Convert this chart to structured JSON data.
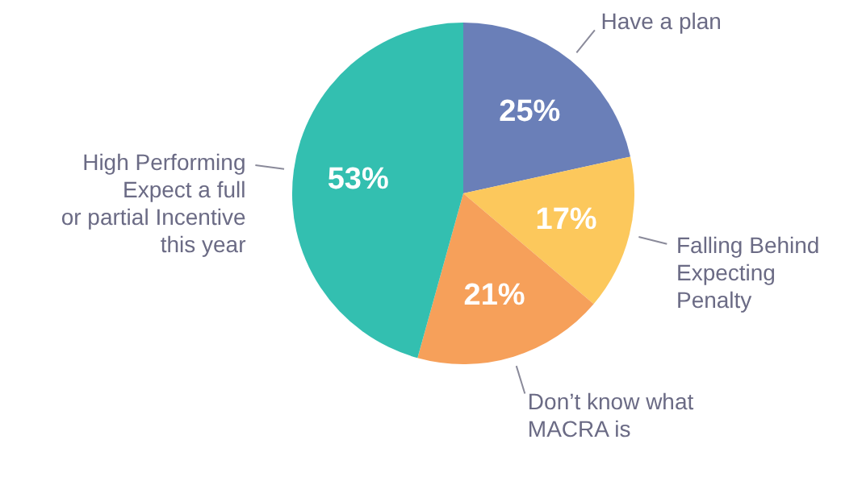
{
  "chart_data": {
    "type": "pie",
    "categories": [
      "Have a plan",
      "Falling Behind\nExpecting\nPenalty",
      "Don’t know what\nMACRA is",
      "High Performing\nExpect a full\nor partial Incentive\nthis year"
    ],
    "values": [
      25,
      17,
      21,
      53
    ],
    "colors": [
      "#6a7fb8",
      "#fcc85c",
      "#f6a05a",
      "#33bfb0"
    ],
    "value_labels": [
      "25%",
      "17%",
      "21%",
      "53%"
    ]
  }
}
